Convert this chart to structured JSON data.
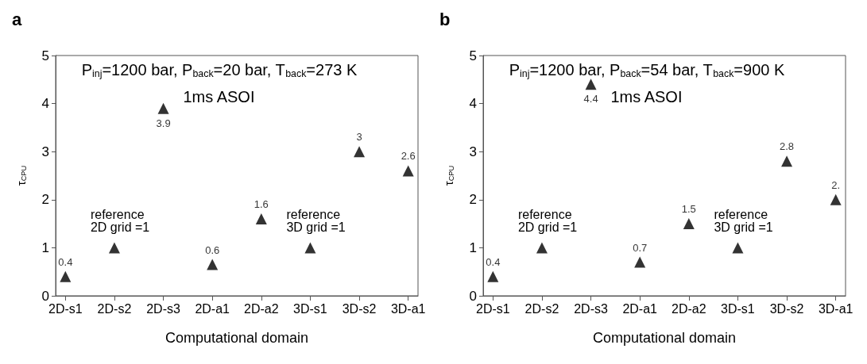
{
  "chart_data": [
    {
      "type": "scatter",
      "title": "a",
      "xlabel": "Computational domain",
      "ylabel": "τ$_{CPU}$",
      "categories": [
        "2D-s1",
        "2D-s2",
        "2D-s3",
        "2D-a1",
        "2D-a2",
        "3D-s1",
        "3D-s2",
        "3D-a1"
      ],
      "series": [
        {
          "color": "#000000",
          "values": [
            0.4,
            1,
            3.9,
            0.65,
            1.6,
            1,
            3,
            2.6
          ],
          "value_labels": [
            "0.4",
            null,
            "3.9",
            "0.6",
            "1.6",
            null,
            "3",
            "2.6"
          ]
        }
      ],
      "ylim": [
        0,
        5
      ],
      "yticks": [
        0,
        1,
        2,
        3,
        4,
        5
      ],
      "marker": "triangle",
      "grid": false,
      "annotations": [
        "P$_{inj}$=1200 bar, P$_{back}$=20 bar, T$_{back}$=273 K",
        "1ms ASOI",
        {
          "text": "reference\n2D grid =1",
          "x": "2D-s2",
          "y": 1
        },
        {
          "text": "reference\n3D grid =1",
          "x": "3D-s1",
          "y": 1
        }
      ]
    },
    {
      "type": "scatter",
      "title": "b",
      "xlabel": "Computational domain",
      "ylabel": "τ$_{CPU}$",
      "categories": [
        "2D-s1",
        "2D-s2",
        "2D-s3",
        "2D-a1",
        "2D-a2",
        "3D-s1",
        "3D-s2",
        "3D-a1"
      ],
      "series": [
        {
          "color": "#000000",
          "values": [
            0.4,
            1,
            4.4,
            0.7,
            1.5,
            1,
            2.8,
            2
          ],
          "value_labels": [
            "0.4",
            null,
            "4.4",
            "0.7",
            "1.5",
            null,
            "2.8",
            "2."
          ]
        }
      ],
      "ylim": [
        0,
        5
      ],
      "yticks": [
        0,
        1,
        2,
        3,
        4,
        5
      ],
      "marker": "triangle",
      "grid": false,
      "annotations": [
        "P$_{inj}$=1200 bar, P$_{back}$=54 bar, T$_{back}$=900 K",
        "1ms ASOI",
        {
          "text": "reference\n2D grid =1",
          "x": "2D-s2",
          "y": 1
        },
        {
          "text": "reference\n3D grid =1",
          "x": "3D-s1",
          "y": 1
        }
      ]
    }
  ]
}
